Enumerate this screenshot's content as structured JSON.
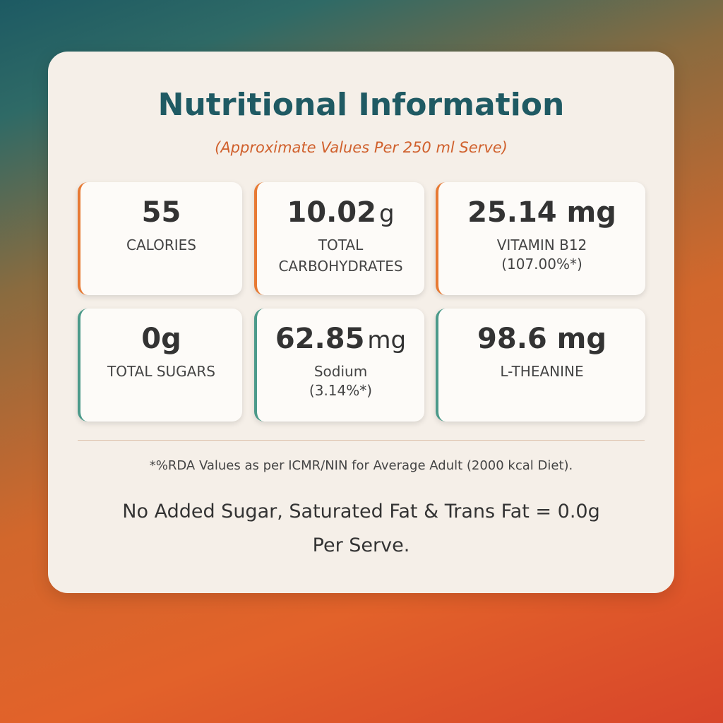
{
  "header": {
    "title": "Nutritional Information",
    "subtitle": "(Approximate Values Per 250 ml Serve)"
  },
  "cards": [
    {
      "value": "55",
      "label": "CALORIES"
    },
    {
      "value": "10.02",
      "unit": "g",
      "label": "TOTAL CARBOHYDRATES"
    },
    {
      "value": "25.14 mg",
      "label": "VITAMIN B12",
      "rda": "(107.00%*)"
    },
    {
      "value": "0g",
      "label": "TOTAL SUGARS"
    },
    {
      "value": "62.85",
      "unit": "mg",
      "label": "Sodium",
      "rda": "(3.14%*)"
    },
    {
      "value": "98.6 mg",
      "label": "L-THEANINE"
    }
  ],
  "footnote": "*%RDA Values as per ICMR/NIN for Average Adult (2000 kcal Diet).",
  "statement": "No Added Sugar, Saturated Fat & Trans Fat = 0.0g Per Serve."
}
